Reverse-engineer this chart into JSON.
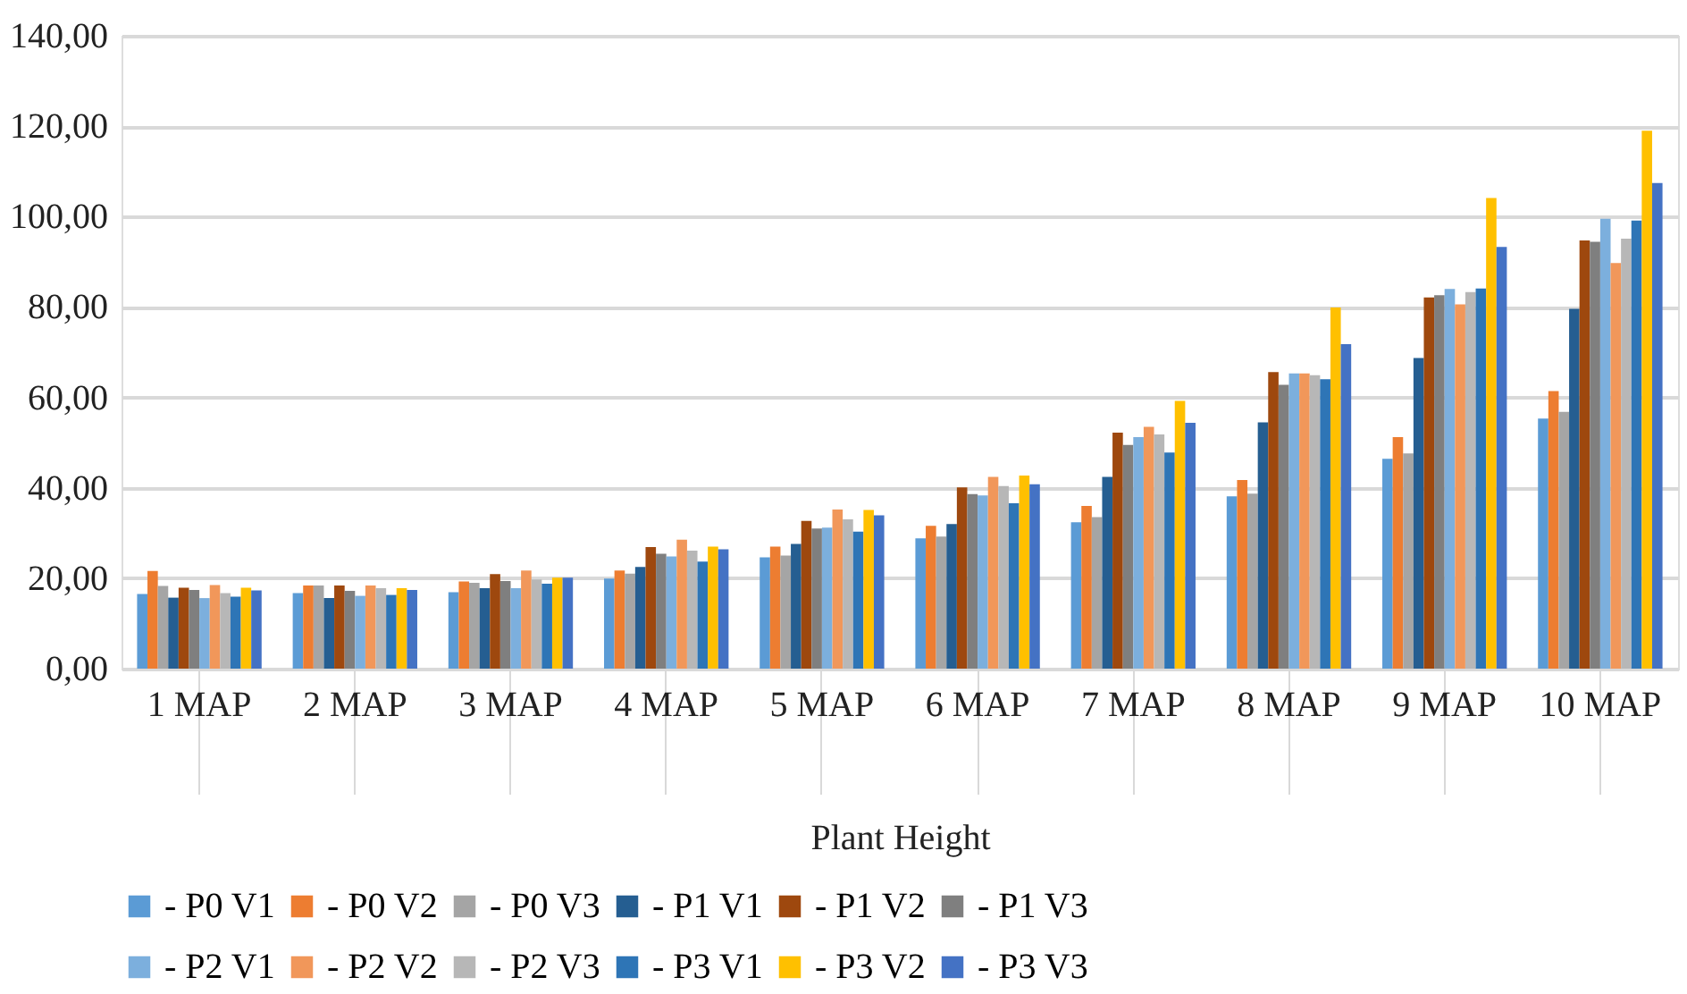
{
  "chart_data": {
    "type": "bar",
    "xlabel": "Plant Height",
    "categories": [
      "1 MAP",
      "2 MAP",
      "3 MAP",
      "4 MAP",
      "5 MAP",
      "6 MAP",
      "7 MAP",
      "8 MAP",
      "9 MAP",
      "10 MAP"
    ],
    "series": [
      {
        "name": "- P0 V1",
        "color": "#5b9bd5",
        "values": [
          16.5,
          16.7,
          16.9,
          19.9,
          24.6,
          28.8,
          32.4,
          38.1,
          46.4,
          55.3
        ]
      },
      {
        "name": "- P0 V2",
        "color": "#ed7d31",
        "values": [
          21.6,
          18.4,
          19.3,
          21.7,
          27.0,
          31.6,
          36.0,
          41.7,
          51.2,
          61.4
        ]
      },
      {
        "name": "- P0 V3",
        "color": "#a5a5a5",
        "values": [
          18.3,
          18.4,
          19.0,
          21.0,
          25.0,
          29.2,
          33.5,
          38.7,
          47.6,
          56.8
        ]
      },
      {
        "name": "- P1 V1",
        "color": "#255e91",
        "values": [
          15.7,
          15.6,
          17.8,
          22.5,
          27.6,
          32.0,
          42.4,
          54.5,
          68.7,
          79.6
        ]
      },
      {
        "name": "- P1 V2",
        "color": "#9e480e",
        "values": [
          17.9,
          18.4,
          20.9,
          26.9,
          32.7,
          40.1,
          52.2,
          65.6,
          82.1,
          94.7
        ]
      },
      {
        "name": "- P1 V3",
        "color": "#7f7f7f",
        "values": [
          17.4,
          17.2,
          19.4,
          25.4,
          31.0,
          38.6,
          49.5,
          62.8,
          82.6,
          94.4
        ]
      },
      {
        "name": "- P2 V1",
        "color": "#7cafdd",
        "values": [
          15.6,
          16.1,
          17.8,
          24.8,
          31.2,
          38.3,
          51.2,
          65.3,
          84.0,
          99.5
        ]
      },
      {
        "name": "- P2 V2",
        "color": "#f1975a",
        "values": [
          18.5,
          18.4,
          21.7,
          28.5,
          35.2,
          42.4,
          53.5,
          65.3,
          80.6,
          89.7
        ]
      },
      {
        "name": "- P2 V3",
        "color": "#b7b7b7",
        "values": [
          16.7,
          17.8,
          19.7,
          26.1,
          33.0,
          40.4,
          51.8,
          64.9,
          83.3,
          95.1
        ]
      },
      {
        "name": "- P3 V1",
        "color": "#2e75b6",
        "values": [
          15.9,
          16.3,
          18.8,
          23.7,
          30.3,
          36.6,
          47.8,
          64.0,
          84.1,
          99.1
        ]
      },
      {
        "name": "- P3 V2",
        "color": "#ffc000",
        "values": [
          17.9,
          17.8,
          20.1,
          27.0,
          35.1,
          42.7,
          59.2,
          79.9,
          104.1,
          119.0
        ]
      },
      {
        "name": "- P3 V3",
        "color": "#4472c4",
        "values": [
          17.3,
          17.4,
          20.1,
          26.4,
          33.9,
          40.8,
          54.4,
          71.8,
          93.3,
          107.4
        ]
      }
    ],
    "ylim": [
      0,
      140
    ],
    "yticks": [
      {
        "value": 0,
        "label": "0,00"
      },
      {
        "value": 20,
        "label": "20,00"
      },
      {
        "value": 40,
        "label": "40,00"
      },
      {
        "value": 60,
        "label": "60,00"
      },
      {
        "value": 80,
        "label": "80,00"
      },
      {
        "value": 100,
        "label": "100,00"
      },
      {
        "value": 120,
        "label": "120,00"
      },
      {
        "value": 140,
        "label": "140,00"
      }
    ],
    "grid": "y",
    "legend": "bottom"
  }
}
